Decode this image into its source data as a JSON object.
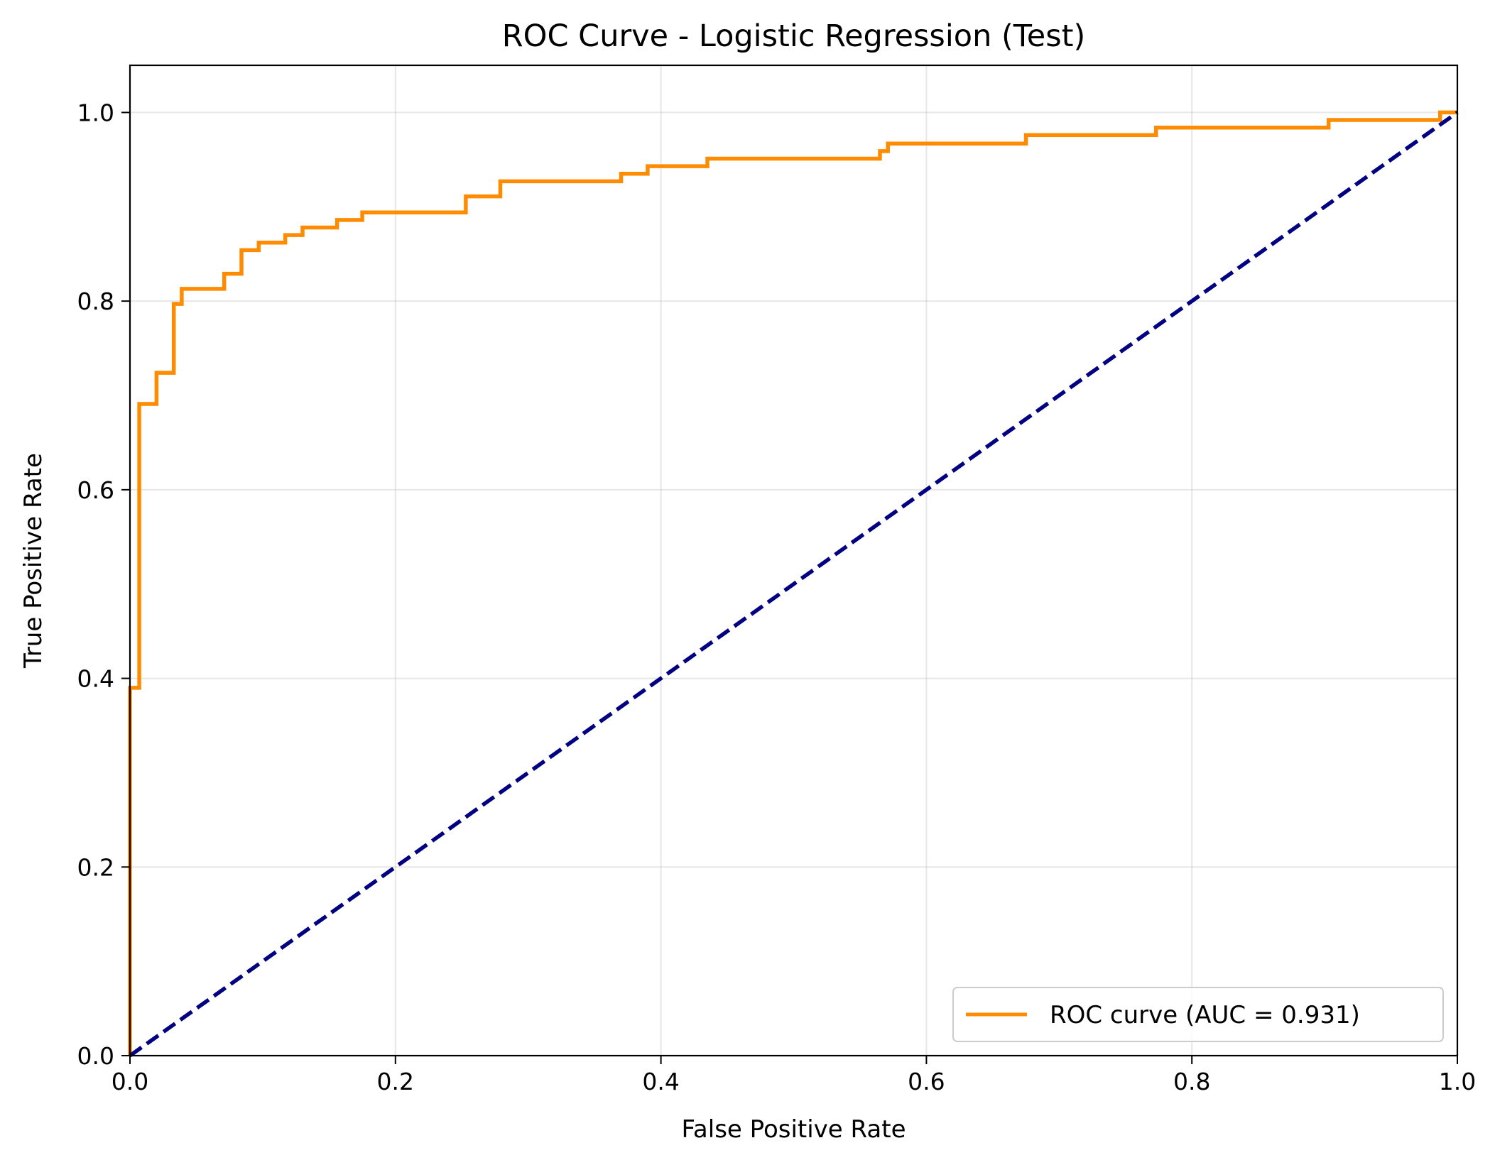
{
  "chart_data": {
    "type": "line",
    "title": "ROC Curve - Logistic Regression (Test)",
    "xlabel": "False Positive Rate",
    "ylabel": "True Positive Rate",
    "xlim": [
      0.0,
      1.0
    ],
    "ylim": [
      0.0,
      1.05
    ],
    "xticks": [
      "0.0",
      "0.2",
      "0.4",
      "0.6",
      "0.8",
      "1.0"
    ],
    "yticks": [
      "0.0",
      "0.2",
      "0.4",
      "0.6",
      "0.8",
      "1.0"
    ],
    "grid": true,
    "legend_position": "lower-right",
    "series": [
      {
        "name": "ROC curve (AUC = 0.931)",
        "color": "#ff8c00",
        "style": "solid",
        "x": [
          0.0,
          0.0,
          0.007,
          0.007,
          0.02,
          0.02,
          0.033,
          0.033,
          0.039,
          0.039,
          0.071,
          0.071,
          0.084,
          0.084,
          0.097,
          0.097,
          0.117,
          0.117,
          0.13,
          0.13,
          0.156,
          0.156,
          0.175,
          0.175,
          0.253,
          0.253,
          0.279,
          0.279,
          0.37,
          0.37,
          0.39,
          0.39,
          0.435,
          0.435,
          0.565,
          0.565,
          0.571,
          0.571,
          0.675,
          0.675,
          0.773,
          0.773,
          0.903,
          0.903,
          0.987,
          0.987,
          1.0
        ],
        "y": [
          0.0,
          0.39,
          0.39,
          0.691,
          0.691,
          0.724,
          0.724,
          0.797,
          0.797,
          0.813,
          0.813,
          0.829,
          0.829,
          0.854,
          0.854,
          0.862,
          0.862,
          0.87,
          0.87,
          0.878,
          0.878,
          0.886,
          0.886,
          0.894,
          0.894,
          0.911,
          0.911,
          0.927,
          0.927,
          0.935,
          0.935,
          0.943,
          0.943,
          0.951,
          0.951,
          0.959,
          0.959,
          0.967,
          0.967,
          0.976,
          0.976,
          0.984,
          0.984,
          0.992,
          0.992,
          1.0,
          1.0
        ]
      },
      {
        "name": "",
        "color": "#000080",
        "style": "dashed",
        "x": [
          0.0,
          1.0
        ],
        "y": [
          0.0,
          1.0
        ]
      }
    ]
  }
}
